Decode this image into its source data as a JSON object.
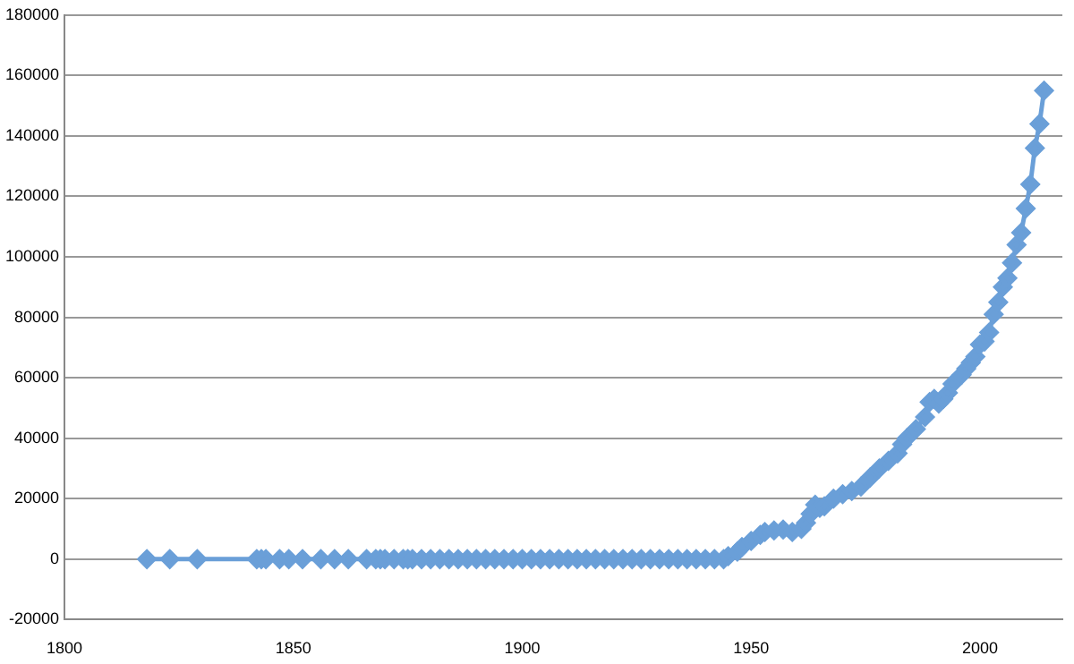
{
  "chart_data": {
    "type": "line",
    "x": [
      1818,
      1823,
      1829,
      1842,
      1843,
      1844,
      1847,
      1849,
      1852,
      1856,
      1859,
      1862,
      1866,
      1868,
      1869,
      1870,
      1872,
      1874,
      1875,
      1876,
      1878,
      1880,
      1882,
      1884,
      1886,
      1888,
      1890,
      1892,
      1894,
      1896,
      1898,
      1900,
      1902,
      1904,
      1906,
      1908,
      1910,
      1912,
      1914,
      1916,
      1918,
      1920,
      1922,
      1924,
      1926,
      1928,
      1930,
      1932,
      1934,
      1936,
      1938,
      1940,
      1942,
      1944,
      1945,
      1947,
      1948,
      1950,
      1952,
      1953,
      1955,
      1957,
      1959,
      1961,
      1962,
      1963,
      1964,
      1965,
      1966,
      1968,
      1970,
      1972,
      1974,
      1976,
      1978,
      1980,
      1982,
      1983,
      1984,
      1986,
      1988,
      1989,
      1990,
      1991,
      1992,
      1993,
      1994,
      1996,
      1997,
      1998,
      1999,
      2000,
      2001,
      2002,
      2003,
      2004,
      2005,
      2006,
      2007,
      2008,
      2009,
      2010,
      2011,
      2012,
      2013,
      2014
    ],
    "series": [
      {
        "color": "#6a9fd8",
        "values": [
          0,
          0,
          0,
          0,
          0,
          0,
          0,
          0,
          0,
          0,
          0,
          0,
          0,
          0,
          0,
          0,
          0,
          0,
          0,
          0,
          0,
          0,
          0,
          0,
          0,
          0,
          0,
          0,
          0,
          0,
          0,
          0,
          0,
          0,
          0,
          0,
          0,
          0,
          0,
          0,
          0,
          0,
          0,
          0,
          0,
          0,
          0,
          0,
          0,
          0,
          0,
          0,
          0,
          0,
          1000,
          2500,
          4000,
          6000,
          8000,
          9000,
          9500,
          9800,
          9000,
          10000,
          12000,
          15000,
          18000,
          17000,
          17500,
          20000,
          21500,
          22500,
          24000,
          27000,
          30000,
          32500,
          35000,
          38000,
          40000,
          43000,
          47000,
          52000,
          53000,
          51500,
          53000,
          55000,
          58000,
          61000,
          63000,
          65000,
          67000,
          71000,
          72000,
          75000,
          81000,
          85000,
          90000,
          93000,
          98000,
          104000,
          108000,
          116000,
          124000,
          136000,
          144000,
          155000
        ]
      }
    ],
    "xlim": [
      1800,
      2018
    ],
    "xticks": [
      1800,
      1850,
      1900,
      1950,
      2000
    ],
    "ylim": [
      -20000,
      180000
    ],
    "yticks": [
      -20000,
      0,
      20000,
      40000,
      60000,
      80000,
      100000,
      120000,
      140000,
      160000,
      180000
    ],
    "grid": "y",
    "legend": false,
    "marker": "diamond",
    "line_style": "solid"
  }
}
